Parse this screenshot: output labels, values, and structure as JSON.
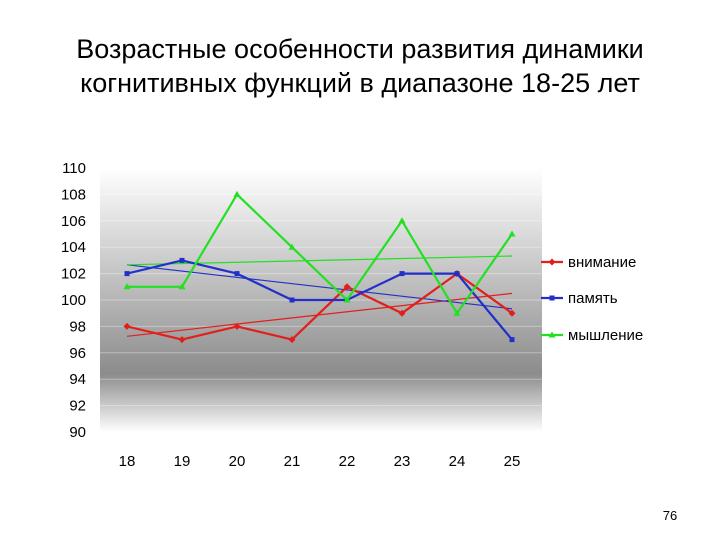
{
  "slide": {
    "title_line1": "Возрастные особенности развития  динамики",
    "title_line2": "когнитивных функций в диапазоне 18-25 лет",
    "page_number": "76"
  },
  "colors": {
    "attention": "#e0201c",
    "memory": "#2030c8",
    "thinking": "#22e022",
    "plot_bg_light": "#ffffff",
    "plot_bg_dark": "#8c8c8c"
  },
  "chart_data": {
    "type": "line",
    "title": "",
    "xlabel": "",
    "ylabel": "",
    "categories": [
      "18",
      "19",
      "20",
      "21",
      "22",
      "23",
      "24",
      "25"
    ],
    "ylim": [
      90,
      110
    ],
    "yticks": [
      "90",
      "92",
      "94",
      "96",
      "98",
      "100",
      "102",
      "104",
      "106",
      "108",
      "110"
    ],
    "legend_position": "right",
    "grid": false,
    "trendlines": true,
    "series": [
      {
        "name": "внимание",
        "color": "#e0201c",
        "marker": "diamond",
        "values": [
          98,
          97,
          98,
          97,
          101,
          99,
          102,
          99
        ]
      },
      {
        "name": "память",
        "color": "#2030c8",
        "marker": "square",
        "values": [
          102,
          103,
          102,
          100,
          100,
          102,
          102,
          97
        ]
      },
      {
        "name": "мышление",
        "color": "#22e022",
        "marker": "triangle",
        "values": [
          101,
          101,
          108,
          104,
          100,
          106,
          99,
          105
        ]
      }
    ]
  }
}
